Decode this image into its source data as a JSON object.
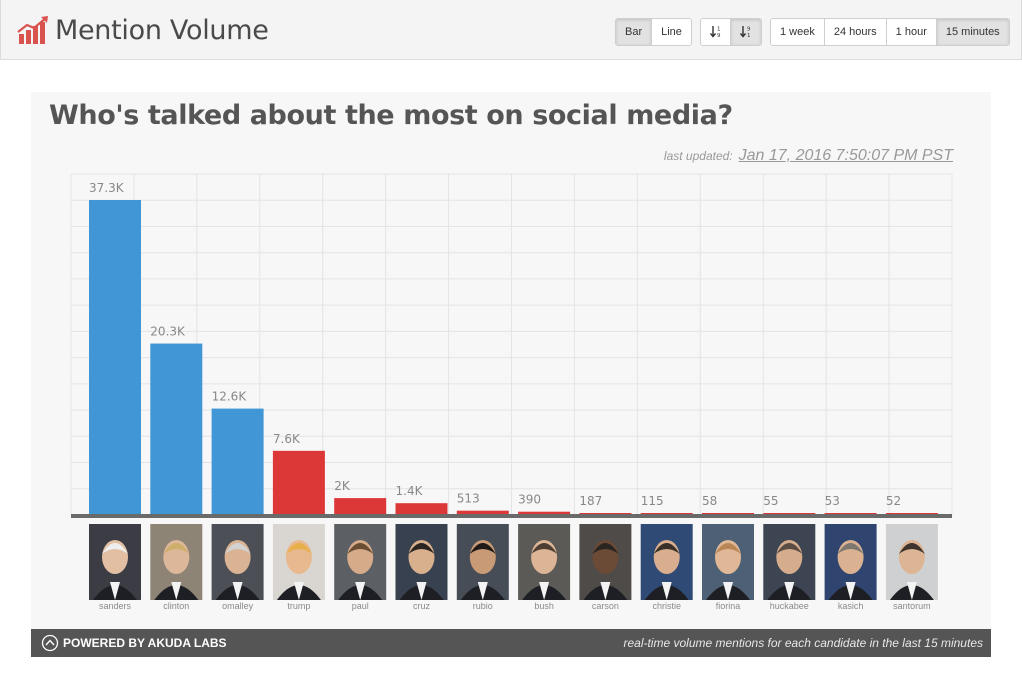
{
  "header": {
    "title": "Mention Volume",
    "chart_type_buttons": [
      {
        "label": "Bar",
        "active": true
      },
      {
        "label": "Line",
        "active": false
      }
    ],
    "sort_buttons": [
      {
        "icon": "sort-ascending-icon",
        "active": false
      },
      {
        "icon": "sort-descending-icon",
        "active": true
      }
    ],
    "time_buttons": [
      {
        "label": "1 week",
        "active": false
      },
      {
        "label": "24 hours",
        "active": false
      },
      {
        "label": "1 hour",
        "active": false
      },
      {
        "label": "15 minutes",
        "active": true
      }
    ]
  },
  "panel": {
    "title": "Who's talked about the most on social media?",
    "last_updated_label": "last updated:",
    "last_updated_value": "Jan 17, 2016 7:50:07 PM PST"
  },
  "footer": {
    "left": "POWERED BY AKUDA LABS",
    "right": "real-time volume mentions for each candidate in the last 15 minutes"
  },
  "colors": {
    "democrat": "#4196d6",
    "republican": "#dd3838",
    "grid": "#e4e4e4",
    "baseline": "#6a6a6a",
    "label": "#888888"
  },
  "chart_data": {
    "type": "bar",
    "title": "Who's talked about the most on social media?",
    "categories": [
      "sanders",
      "clinton",
      "omalley",
      "trump",
      "paul",
      "cruz",
      "rubio",
      "bush",
      "carson",
      "christie",
      "fiorina",
      "huckabee",
      "kasich",
      "santorum"
    ],
    "values": [
      37300,
      20300,
      12600,
      7600,
      2000,
      1400,
      513,
      390,
      187,
      115,
      58,
      55,
      53,
      52
    ],
    "value_labels": [
      "37.3K",
      "20.3K",
      "12.6K",
      "7.6K",
      "2K",
      "1.4K",
      "513",
      "390",
      "187",
      "115",
      "58",
      "55",
      "53",
      "52"
    ],
    "party": [
      "democrat",
      "democrat",
      "democrat",
      "republican",
      "republican",
      "republican",
      "republican",
      "republican",
      "republican",
      "republican",
      "republican",
      "republican",
      "republican",
      "republican"
    ],
    "ylim": [
      0,
      37300
    ],
    "grid": true,
    "legend": "none"
  }
}
